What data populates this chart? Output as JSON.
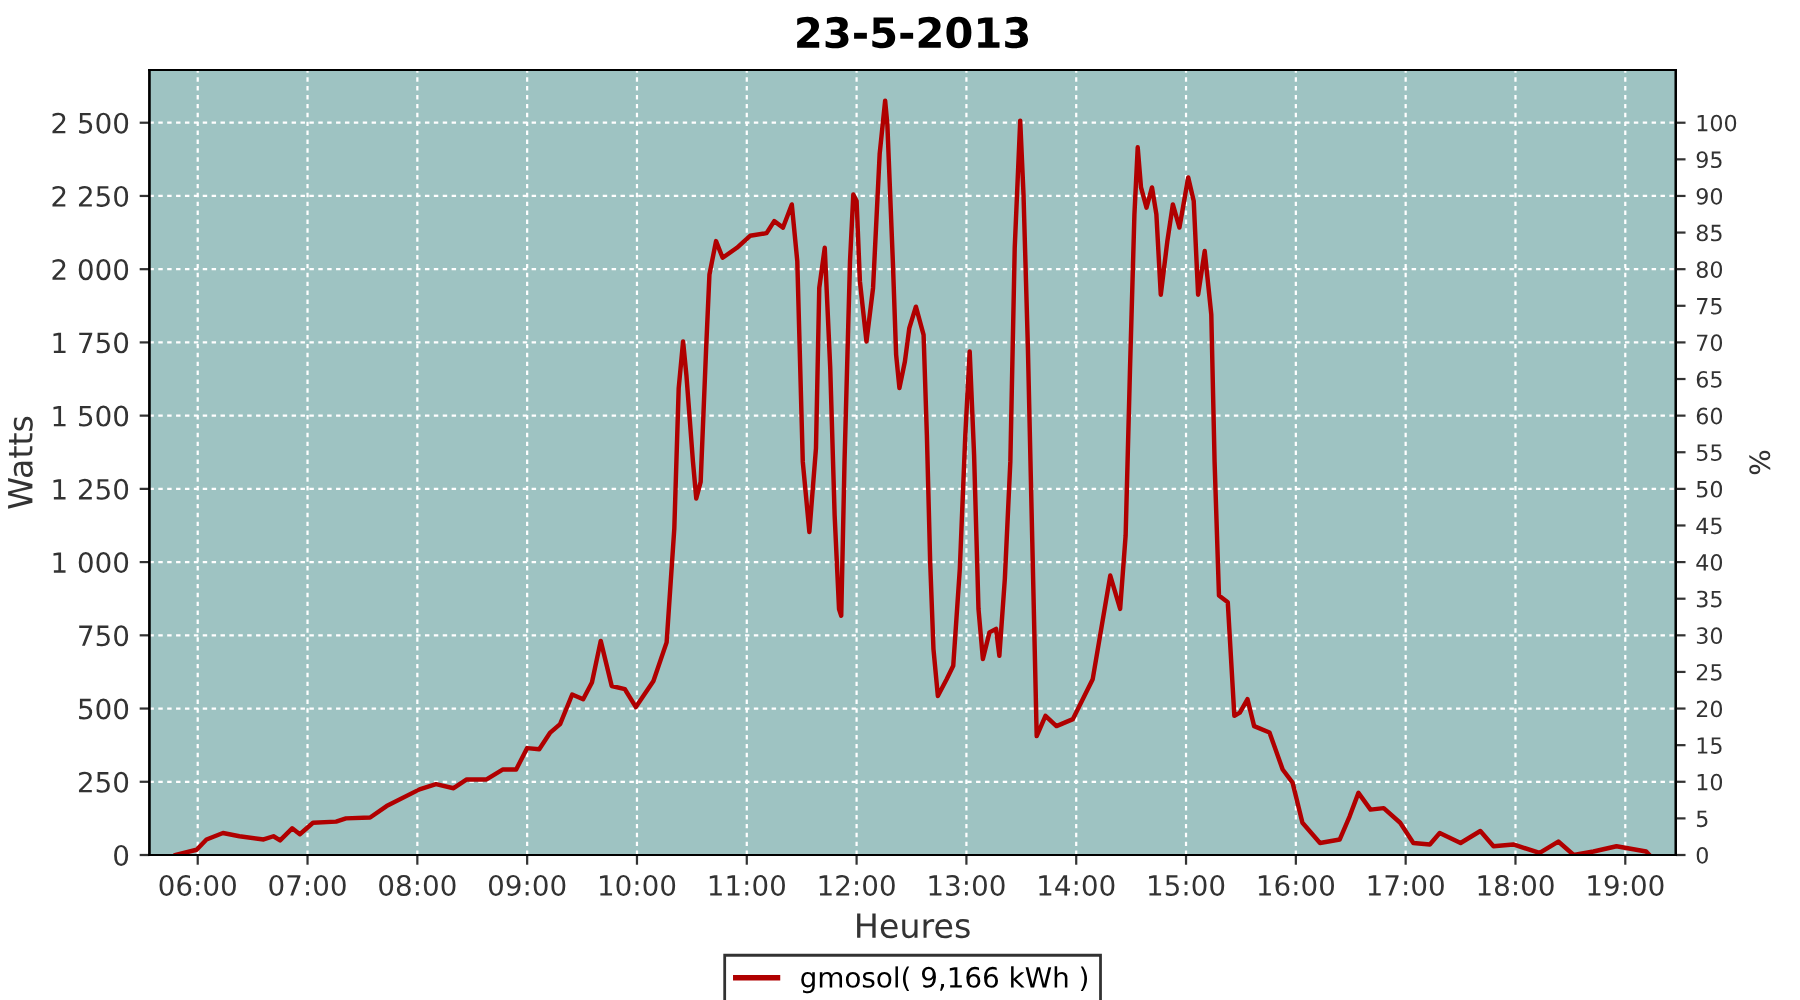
{
  "chart_data": {
    "type": "line",
    "title": "23-5-2013",
    "xlabel": "Heures",
    "ylabel": "Watts",
    "y2label": "%",
    "x": [
      5.8,
      5.99,
      6.08,
      6.23,
      6.38,
      6.6,
      6.69,
      6.75,
      6.86,
      6.93,
      7.05,
      7.26,
      7.35,
      7.57,
      7.72,
      8.02,
      8.17,
      8.33,
      8.45,
      8.63,
      8.78,
      8.9,
      9.0,
      9.11,
      9.21,
      9.3,
      9.41,
      9.51,
      9.59,
      9.67,
      9.77,
      9.89,
      9.99,
      10.15,
      10.27,
      10.34,
      10.38,
      10.42,
      10.45,
      10.51,
      10.54,
      10.58,
      10.63,
      10.66,
      10.72,
      10.78,
      10.91,
      11.03,
      11.18,
      11.25,
      11.33,
      11.41,
      11.46,
      11.51,
      11.57,
      11.63,
      11.66,
      11.71,
      11.76,
      11.8,
      11.84,
      11.86,
      11.89,
      11.94,
      11.97,
      12.0,
      12.03,
      12.09,
      12.15,
      12.21,
      12.26,
      12.28,
      12.33,
      12.36,
      12.39,
      12.44,
      12.48,
      12.54,
      12.61,
      12.64,
      12.67,
      12.7,
      12.74,
      12.82,
      12.88,
      12.94,
      12.99,
      13.03,
      13.07,
      13.11,
      13.15,
      13.21,
      13.27,
      13.3,
      13.35,
      13.4,
      13.44,
      13.49,
      13.52,
      13.56,
      13.6,
      13.64,
      13.72,
      13.82,
      13.97,
      14.15,
      14.31,
      14.4,
      14.45,
      14.49,
      14.53,
      14.56,
      14.59,
      14.64,
      14.69,
      14.73,
      14.77,
      14.83,
      14.88,
      14.94,
      15.02,
      15.07,
      15.11,
      15.17,
      15.23,
      15.26,
      15.3,
      15.38,
      15.44,
      15.49,
      15.56,
      15.62,
      15.76,
      15.88,
      15.97,
      16.06,
      16.22,
      16.4,
      16.49,
      16.57,
      16.68,
      16.8,
      16.95,
      17.07,
      17.22,
      17.31,
      17.5,
      17.68,
      17.8,
      17.98,
      18.22,
      18.39,
      18.53,
      18.71,
      18.92,
      19.19,
      19.22
    ],
    "series": [
      {
        "name": "gmosol( 9,166 kWh )",
        "color": "#b00000",
        "values": [
          0,
          18,
          53,
          75,
          64,
          53,
          64,
          50,
          91,
          71,
          110,
          114,
          125,
          128,
          167,
          224,
          242,
          228,
          258,
          258,
          292,
          292,
          365,
          361,
          418,
          447,
          548,
          532,
          589,
          731,
          577,
          566,
          505,
          594,
          726,
          1114,
          1594,
          1753,
          1639,
          1342,
          1217,
          1274,
          1731,
          1982,
          2096,
          2039,
          2073,
          2114,
          2123,
          2164,
          2142,
          2221,
          2027,
          1342,
          1103,
          1388,
          1936,
          2073,
          1662,
          1160,
          840,
          817,
          1342,
          2027,
          2255,
          2233,
          1959,
          1753,
          1936,
          2393,
          2575,
          2495,
          2027,
          1708,
          1594,
          1685,
          1799,
          1872,
          1776,
          1434,
          1000,
          703,
          543,
          600,
          646,
          977,
          1434,
          1719,
          1365,
          840,
          669,
          760,
          772,
          680,
          943,
          1342,
          2073,
          2507,
          2255,
          1731,
          1068,
          406,
          475,
          440,
          464,
          600,
          954,
          840,
          1091,
          1662,
          2187,
          2416,
          2279,
          2210,
          2279,
          2187,
          1913,
          2096,
          2221,
          2142,
          2313,
          2233,
          1913,
          2062,
          1845,
          1342,
          886,
          863,
          475,
          486,
          532,
          440,
          418,
          292,
          247,
          110,
          41,
          53,
          132,
          212,
          155,
          160,
          110,
          41,
          36,
          75,
          41,
          82,
          30,
          36,
          7,
          46,
          0,
          12,
          30,
          12,
          0
        ]
      }
    ],
    "xlim": [
      5.56,
      19.46
    ],
    "xticks": [
      {
        "value": 6,
        "label": "06:00"
      },
      {
        "value": 7,
        "label": "07:00"
      },
      {
        "value": 8,
        "label": "08:00"
      },
      {
        "value": 9,
        "label": "09:00"
      },
      {
        "value": 10,
        "label": "10:00"
      },
      {
        "value": 11,
        "label": "11:00"
      },
      {
        "value": 12,
        "label": "12:00"
      },
      {
        "value": 13,
        "label": "13:00"
      },
      {
        "value": 14,
        "label": "14:00"
      },
      {
        "value": 15,
        "label": "15:00"
      },
      {
        "value": 16,
        "label": "16:00"
      },
      {
        "value": 17,
        "label": "17:00"
      },
      {
        "value": 18,
        "label": "18:00"
      },
      {
        "value": 19,
        "label": "19:00"
      }
    ],
    "ylim": [
      0,
      2680
    ],
    "yticks": [
      0,
      250,
      500,
      750,
      {
        "value": 1000,
        "label": "1 000"
      },
      {
        "value": 1250,
        "label": "1 250"
      },
      {
        "value": 1500,
        "label": "1 500"
      },
      {
        "value": 1750,
        "label": "1 750"
      },
      {
        "value": 2000,
        "label": "2 000"
      },
      {
        "value": 2250,
        "label": "2 250"
      },
      {
        "value": 2500,
        "label": "2 500"
      }
    ],
    "y2lim": [
      0,
      107.2
    ],
    "y2ticks": [
      0,
      5,
      10,
      15,
      20,
      25,
      30,
      35,
      40,
      45,
      50,
      55,
      60,
      65,
      70,
      75,
      80,
      85,
      90,
      95,
      100
    ],
    "grid": true,
    "legend": "bottom",
    "line_style": "solid",
    "marker": "none"
  }
}
